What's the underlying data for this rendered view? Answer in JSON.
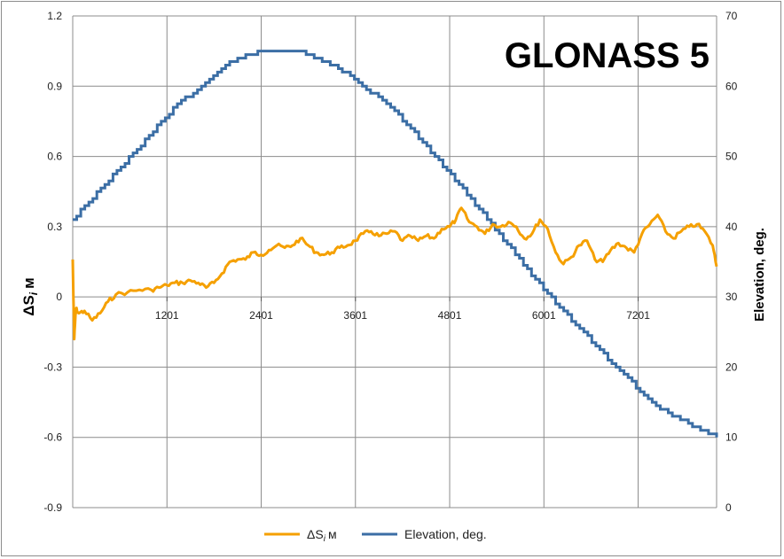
{
  "chart_data": {
    "type": "line",
    "title": "GLONASS 5",
    "ylabel": "ΔS",
    "ylabel_sub": "i",
    "ylabel_unit": "м",
    "y2label": "Elevation, deg.",
    "ylim": [
      -0.9,
      1.2
    ],
    "y2lim": [
      0,
      70
    ],
    "xlim": [
      1,
      8200
    ],
    "yticks": [
      "1.2",
      "0.9",
      "0.6",
      "0.3",
      "0",
      "-0.3",
      "-0.6",
      "-0.9"
    ],
    "y2ticks": [
      "70",
      "60",
      "50",
      "40",
      "30",
      "20",
      "10",
      "0"
    ],
    "xticks": [
      "1201",
      "2401",
      "3601",
      "4801",
      "6001",
      "7201"
    ],
    "grid": true,
    "legend_position": "bottom",
    "series": [
      {
        "name": "ΔS",
        "name_sub": "i",
        "name_unit": "м",
        "axis": "left",
        "color": "#f5a000",
        "x": [
          1,
          20,
          40,
          80,
          150,
          250,
          350,
          450,
          550,
          700,
          850,
          1000,
          1100,
          1200,
          1300,
          1400,
          1500,
          1600,
          1700,
          1800,
          1900,
          2000,
          2100,
          2200,
          2300,
          2400,
          2500,
          2600,
          2700,
          2800,
          2900,
          3000,
          3100,
          3200,
          3300,
          3400,
          3500,
          3600,
          3700,
          3800,
          3900,
          4000,
          4100,
          4200,
          4300,
          4400,
          4500,
          4600,
          4700,
          4800,
          4880,
          4950,
          5050,
          5150,
          5250,
          5350,
          5450,
          5550,
          5650,
          5750,
          5850,
          5950,
          6050,
          6150,
          6250,
          6350,
          6450,
          6550,
          6650,
          6750,
          6850,
          6950,
          7050,
          7150,
          7250,
          7350,
          7450,
          7550,
          7650,
          7750,
          7850,
          7950,
          8050,
          8150,
          8200
        ],
        "y": [
          0.16,
          -0.18,
          -0.05,
          -0.07,
          -0.06,
          -0.1,
          -0.07,
          -0.02,
          0.01,
          0.02,
          0.03,
          0.03,
          0.04,
          0.05,
          0.06,
          0.06,
          0.07,
          0.06,
          0.04,
          0.06,
          0.1,
          0.15,
          0.16,
          0.16,
          0.19,
          0.18,
          0.2,
          0.22,
          0.21,
          0.22,
          0.25,
          0.22,
          0.19,
          0.18,
          0.19,
          0.21,
          0.22,
          0.24,
          0.27,
          0.28,
          0.26,
          0.27,
          0.28,
          0.24,
          0.26,
          0.24,
          0.26,
          0.25,
          0.29,
          0.3,
          0.33,
          0.38,
          0.32,
          0.3,
          0.27,
          0.31,
          0.3,
          0.32,
          0.3,
          0.25,
          0.27,
          0.33,
          0.29,
          0.19,
          0.14,
          0.17,
          0.22,
          0.24,
          0.16,
          0.15,
          0.2,
          0.23,
          0.21,
          0.19,
          0.27,
          0.31,
          0.35,
          0.28,
          0.25,
          0.28,
          0.3,
          0.31,
          0.28,
          0.22,
          0.13
        ]
      },
      {
        "name": "Elevation, deg.",
        "axis": "right",
        "color": "#3b6ea5",
        "x": [
          1,
          1300,
          2000,
          2400,
          2550,
          2750,
          2850,
          3000,
          3400,
          3700,
          4050,
          4500,
          5000,
          5500,
          6000,
          6500,
          7000,
          7500,
          8000,
          8200
        ],
        "y": [
          41,
          57,
          63.5,
          65,
          65,
          65,
          65,
          64.5,
          62.5,
          60,
          57,
          51.5,
          45,
          38,
          31,
          25,
          19,
          14,
          11,
          10
        ]
      }
    ]
  }
}
